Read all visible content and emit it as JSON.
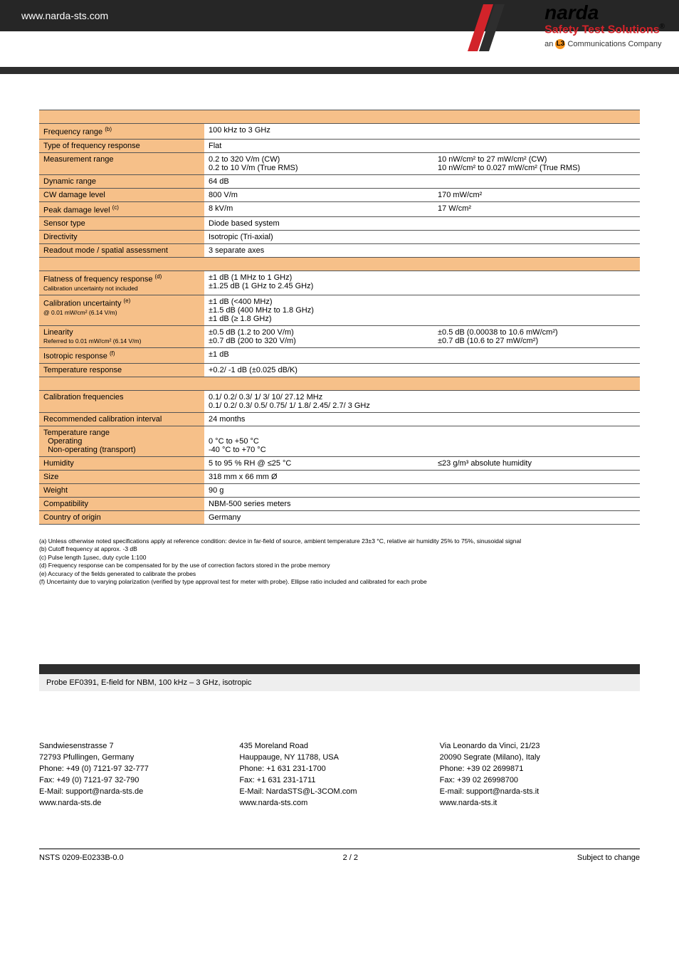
{
  "header": {
    "url": "www.narda-sts.com"
  },
  "logo": {
    "brand": "narda",
    "tagline": "Safety Test Solutions",
    "reg": "®",
    "company_prefix": "an",
    "company_dot": "L3",
    "company_suffix": "Communications Company"
  },
  "colors": {
    "header_bg": "#262626",
    "label_bg": "#f6c089",
    "accent_red": "#d2232a",
    "accent_orange": "#f7941d"
  },
  "spec_rows": [
    {
      "type": "section"
    },
    {
      "label": "Frequency range",
      "sup": "(b)",
      "v1": "100 kHz to 3 GHz",
      "v2": ""
    },
    {
      "label": "Type of frequency response",
      "v1": "Flat",
      "v2": ""
    },
    {
      "label": "Measurement range",
      "v1": "0.2 to 320 V/m (CW)\n0.2 to 10 V/m (True RMS)",
      "v2": "10 nW/cm² to 27 mW/cm² (CW)\n10 nW/cm² to 0.027 mW/cm² (True RMS)"
    },
    {
      "label": "Dynamic range",
      "v1": "64 dB",
      "v2": ""
    },
    {
      "label": "CW damage level",
      "v1": "800 V/m",
      "v2": "170 mW/cm²"
    },
    {
      "label": "Peak damage level",
      "sup": "(c)",
      "v1": "8 kV/m",
      "v2": "17 W/cm²"
    },
    {
      "label": "Sensor type",
      "v1": "Diode based system",
      "v2": ""
    },
    {
      "label": "Directivity",
      "v1": "Isotropic (Tri-axial)",
      "v2": ""
    },
    {
      "label": "Readout mode / spatial assessment",
      "v1": "3 separate axes",
      "v2": ""
    },
    {
      "type": "section"
    },
    {
      "label": "Flatness of frequency response",
      "sup": "(d)",
      "sub": "Calibration uncertainty not included",
      "v1": "±1 dB (1 MHz to 1 GHz)\n±1.25 dB (1 GHz to 2.45 GHz)",
      "v2": ""
    },
    {
      "label": "Calibration uncertainty",
      "sup": "(e)",
      "sub": "@ 0.01 mW/cm² (6.14 V/m)",
      "v1": "±1 dB (<400 MHz)\n±1.5 dB (400 MHz to 1.8 GHz)\n±1 dB (≥ 1.8 GHz)",
      "v2": ""
    },
    {
      "label": "Linearity",
      "sub": "Referred to 0.01 mW/cm² (6.14 V/m)",
      "v1": "±0.5 dB (1.2 to 200 V/m)\n±0.7 dB (200 to 320 V/m)",
      "v2": "±0.5 dB (0.00038 to 10.6 mW/cm²)\n±0.7 dB (10.6 to 27 mW/cm²)"
    },
    {
      "label": "Isotropic response",
      "sup": "(f)",
      "v1": "±1 dB",
      "v2": ""
    },
    {
      "label": "Temperature response",
      "v1": "+0.2/ -1 dB (±0.025 dB/K)",
      "v2": ""
    },
    {
      "type": "section"
    },
    {
      "label": "Calibration frequencies",
      "v1": "0.1/ 0.2/ 0.3/ 1/ 3/ 10/ 27.12 MHz\n0.1/ 0.2/ 0.3/ 0.5/ 0.75/ 1/ 1.8/ 2.45/ 2.7/ 3 GHz",
      "v2": ""
    },
    {
      "label": "Recommended calibration interval",
      "v1": "24 months",
      "v2": ""
    },
    {
      "label": "Temperature range\n  Operating\n  Non-operating (transport)",
      "v1": "\n0 °C to +50 °C\n-40 °C to +70 °C",
      "v2": ""
    },
    {
      "label": "Humidity",
      "v1": "5 to 95 % RH @ ≤25 °C",
      "v2": "≤23 g/m³ absolute humidity"
    },
    {
      "label": "Size",
      "v1": "318 mm x 66 mm Ø",
      "v2": ""
    },
    {
      "label": "Weight",
      "v1": "90 g",
      "v2": ""
    },
    {
      "label": "Compatibility",
      "v1": "NBM-500 series meters",
      "v2": ""
    },
    {
      "label": "Country of origin",
      "v1": "Germany",
      "v2": ""
    }
  ],
  "footnotes": [
    "(a)  Unless otherwise noted specifications apply at reference condition: device in far-field of source, ambient temperature 23±3 °C, relative air humidity 25% to 75%, sinusoidal signal",
    "(b)  Cutoff frequency at approx. -3 dB",
    "(c)  Pulse length 1µsec, duty cycle 1:100",
    "(d)  Frequency response can be compensated for by the use of correction factors stored in the probe memory",
    "(e)  Accuracy of the fields generated to calibrate the probes",
    "(f)   Uncertainty due to varying polarization (verified by type approval test for meter with probe). Ellipse ratio included and calibrated for each probe"
  ],
  "probe_label": "Probe EF0391, E-field for NBM, 100 kHz – 3 GHz, isotropic",
  "addresses": [
    [
      "Sandwiesenstrasse 7",
      "72793 Pfullingen, Germany",
      "Phone: +49 (0) 7121-97 32-777",
      "Fax: +49 (0) 7121-97 32-790",
      "E-Mail: support@narda-sts.de",
      "www.narda-sts.de"
    ],
    [
      "435 Moreland Road",
      "Hauppauge, NY 11788, USA",
      "Phone: +1 631 231-1700",
      "Fax: +1 631 231-1711",
      "E-Mail: NardaSTS@L-3COM.com",
      "www.narda-sts.com"
    ],
    [
      "Via Leonardo da Vinci, 21/23",
      "20090 Segrate (Milano), Italy",
      "Phone: +39 02 2699871",
      "Fax: +39 02 26998700",
      "E-mail: support@narda-sts.it",
      "www.narda-sts.it"
    ]
  ],
  "footer": {
    "left": "NSTS 0209-E0233B-0.0",
    "center": "2 / 2",
    "right": "Subject to change"
  }
}
